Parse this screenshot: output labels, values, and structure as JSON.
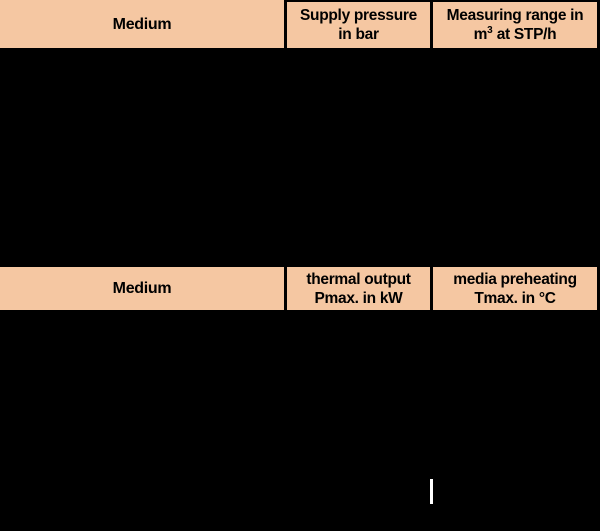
{
  "colors": {
    "page_background": "#000000",
    "header_cell_background": "#F5C7A2",
    "header_text": "#000000",
    "cell_border": "#000000",
    "caret": "#FFFFFF"
  },
  "table_flow": {
    "header": {
      "medium": "Medium",
      "supply_pressure_line1": "Supply pressure",
      "supply_pressure_line2": "in bar",
      "measuring_range_line1": "Measuring range in",
      "measuring_range_unit_base": "m",
      "measuring_range_unit_sup": "3",
      "measuring_range_unit_rest": " at STP/h"
    }
  },
  "table_thermal": {
    "header": {
      "medium": "Medium",
      "thermal_output_line1": "thermal output",
      "thermal_output_line2": "Pmax. in kW",
      "media_preheating_line1": "media preheating",
      "media_preheating_line2": "Tmax. in °C"
    }
  }
}
